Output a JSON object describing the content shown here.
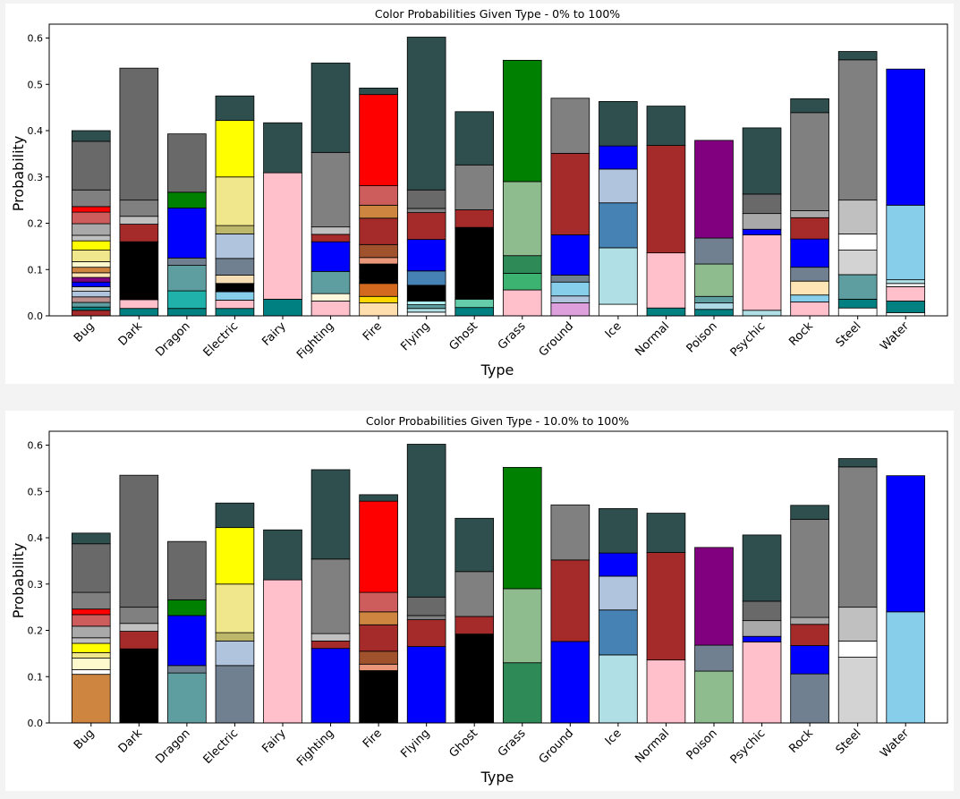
{
  "chart_data": [
    {
      "type": "bar",
      "stacked": true,
      "title": "Color Probabilities Given Type - 0% to 100%",
      "xlabel": "Type",
      "ylabel": "Probability",
      "ylim": [
        0,
        0.63
      ],
      "yticks": [
        0.0,
        0.1,
        0.2,
        0.3,
        0.4,
        0.5,
        0.6
      ],
      "categories": [
        "Bug",
        "Dark",
        "Dragon",
        "Electric",
        "Fairy",
        "Fighting",
        "Fire",
        "Flying",
        "Ghost",
        "Grass",
        "Ground",
        "Ice",
        "Normal",
        "Poison",
        "Psychic",
        "Rock",
        "Steel",
        "Water"
      ],
      "stacks": [
        [
          [
            0.012,
            "#a52a2a"
          ],
          [
            0.007,
            "#008080"
          ],
          [
            0.01,
            "#5f9ea0"
          ],
          [
            0.012,
            "#bc8f8f"
          ],
          [
            0.012,
            "#b0c4de"
          ],
          [
            0.01,
            "#d3d3d3"
          ],
          [
            0.01,
            "#0000ff"
          ],
          [
            0.01,
            "#800080"
          ],
          [
            0.01,
            "#ffe4b5"
          ],
          [
            0.012,
            "#cd853f"
          ],
          [
            0.012,
            "#fffacd"
          ],
          [
            0.025,
            "#f0e68c"
          ],
          [
            0.02,
            "#ffff00"
          ],
          [
            0.012,
            "#c0c0c0"
          ],
          [
            0.025,
            "#a9a9a9"
          ],
          [
            0.025,
            "#cd5c5c"
          ],
          [
            0.012,
            "#ff0000"
          ],
          [
            0.036,
            "#808080"
          ],
          [
            0.105,
            "#696969"
          ],
          [
            0.023,
            "#2f4f4f"
          ]
        ],
        [
          [
            0.016,
            "#008080"
          ],
          [
            0.019,
            "#ffc0cb"
          ],
          [
            0.125,
            "#000000"
          ],
          [
            0.038,
            "#a52a2a"
          ],
          [
            0.017,
            "#c0c0c0"
          ],
          [
            0.035,
            "#808080"
          ],
          [
            0.285,
            "#696969"
          ]
        ],
        [
          [
            0.016,
            "#008080"
          ],
          [
            0.038,
            "#20b2aa"
          ],
          [
            0.055,
            "#5f9ea0"
          ],
          [
            0.016,
            "#708090"
          ],
          [
            0.108,
            "#0000ff"
          ],
          [
            0.034,
            "#008000"
          ],
          [
            0.126,
            "#696969"
          ]
        ],
        [
          [
            0.016,
            "#008080"
          ],
          [
            0.018,
            "#ffc0cb"
          ],
          [
            0.018,
            "#87ceeb"
          ],
          [
            0.018,
            "#000000"
          ],
          [
            0.018,
            "#f5deb3"
          ],
          [
            0.036,
            "#708090"
          ],
          [
            0.053,
            "#b0c4de"
          ],
          [
            0.018,
            "#bdb76b"
          ],
          [
            0.105,
            "#f0e68c"
          ],
          [
            0.122,
            "#ffff00"
          ],
          [
            0.053,
            "#2f4f4f"
          ]
        ],
        [
          [
            0.036,
            "#008080"
          ],
          [
            0.273,
            "#ffc0cb"
          ],
          [
            0.108,
            "#2f4f4f"
          ]
        ],
        [
          [
            0.032,
            "#ffc0cb"
          ],
          [
            0.016,
            "#fff8dc"
          ],
          [
            0.048,
            "#5f9ea0"
          ],
          [
            0.064,
            "#0000ff"
          ],
          [
            0.016,
            "#a52a2a"
          ],
          [
            0.016,
            "#c0c0c0"
          ],
          [
            0.161,
            "#808080"
          ],
          [
            0.193,
            "#2f4f4f"
          ]
        ],
        [
          [
            0.028,
            "#ffdead"
          ],
          [
            0.014,
            "#ffd700"
          ],
          [
            0.028,
            "#d2691e"
          ],
          [
            0.014,
            "#000000"
          ],
          [
            0.028,
            "#000000"
          ],
          [
            0.014,
            "#e9967a"
          ],
          [
            0.028,
            "#a0522d"
          ],
          [
            0.057,
            "#a52a2a"
          ],
          [
            0.028,
            "#cd853f"
          ],
          [
            0.042,
            "#cd5c5c"
          ],
          [
            0.197,
            "#ff0000"
          ],
          [
            0.014,
            "#2f4f4f"
          ]
        ],
        [
          [
            0.008,
            "#ffffff"
          ],
          [
            0.008,
            "#b0e0e6"
          ],
          [
            0.008,
            "#5f9ea0"
          ],
          [
            0.008,
            "#afeeee"
          ],
          [
            0.034,
            "#000000"
          ],
          [
            0.031,
            "#4682b4"
          ],
          [
            0.068,
            "#0000ff"
          ],
          [
            0.058,
            "#a52a2a"
          ],
          [
            0.009,
            "#808080"
          ],
          [
            0.04,
            "#696969"
          ],
          [
            0.33,
            "#2f4f4f"
          ]
        ],
        [
          [
            0.018,
            "#008080"
          ],
          [
            0.018,
            "#66cdaa"
          ],
          [
            0.155,
            "#000000"
          ],
          [
            0.038,
            "#a52a2a"
          ],
          [
            0.097,
            "#808080"
          ],
          [
            0.115,
            "#2f4f4f"
          ]
        ],
        [
          [
            0.056,
            "#ffc0cb"
          ],
          [
            0.036,
            "#3cb371"
          ],
          [
            0.038,
            "#2e8b57"
          ],
          [
            0.16,
            "#8fbc8f"
          ],
          [
            0.262,
            "#008000"
          ]
        ],
        [
          [
            0.028,
            "#dda0dd"
          ],
          [
            0.015,
            "#b0c4de"
          ],
          [
            0.03,
            "#87ceeb"
          ],
          [
            0.015,
            "#708090"
          ],
          [
            0.087,
            "#0000ff"
          ],
          [
            0.176,
            "#a52a2a"
          ],
          [
            0.119,
            "#808080"
          ]
        ],
        [
          [
            0.025,
            "#ffffff"
          ],
          [
            0.122,
            "#b0e0e6"
          ],
          [
            0.097,
            "#4682b4"
          ],
          [
            0.073,
            "#b0c4de"
          ],
          [
            0.05,
            "#0000ff"
          ],
          [
            0.096,
            "#2f4f4f"
          ]
        ],
        [
          [
            0.017,
            "#008080"
          ],
          [
            0.119,
            "#ffc0cb"
          ],
          [
            0.232,
            "#a52a2a"
          ],
          [
            0.085,
            "#2f4f4f"
          ]
        ],
        [
          [
            0.014,
            "#008080"
          ],
          [
            0.014,
            "#add8e6"
          ],
          [
            0.014,
            "#5f9ea0"
          ],
          [
            0.07,
            "#8fbc8f"
          ],
          [
            0.056,
            "#708090"
          ],
          [
            0.211,
            "#800080"
          ]
        ],
        [
          [
            0.012,
            "#b0e0e6"
          ],
          [
            0.163,
            "#ffc0cb"
          ],
          [
            0.012,
            "#0000ff"
          ],
          [
            0.034,
            "#a9a9a9"
          ],
          [
            0.042,
            "#696969"
          ],
          [
            0.143,
            "#2f4f4f"
          ]
        ],
        [
          [
            0.03,
            "#ffc0cb"
          ],
          [
            0.015,
            "#87ceeb"
          ],
          [
            0.03,
            "#ffe4b5"
          ],
          [
            0.03,
            "#708090"
          ],
          [
            0.061,
            "#0000ff"
          ],
          [
            0.046,
            "#a52a2a"
          ],
          [
            0.015,
            "#a9a9a9"
          ],
          [
            0.212,
            "#808080"
          ],
          [
            0.03,
            "#2f4f4f"
          ]
        ],
        [
          [
            0.017,
            "#ffffff"
          ],
          [
            0.019,
            "#008080"
          ],
          [
            0.053,
            "#5f9ea0"
          ],
          [
            0.053,
            "#d3d3d3"
          ],
          [
            0.035,
            "#ffffff"
          ],
          [
            0.073,
            "#c0c0c0"
          ],
          [
            0.303,
            "#808080"
          ],
          [
            0.018,
            "#2f4f4f"
          ]
        ],
        [
          [
            0.007,
            "#ffffff"
          ],
          [
            0.025,
            "#008080"
          ],
          [
            0.031,
            "#ffc0cb"
          ],
          [
            0.007,
            "#f5f5f5"
          ],
          [
            0.008,
            "#b0e0e6"
          ],
          [
            0.161,
            "#87ceeb"
          ],
          [
            0.294,
            "#0000ff"
          ]
        ]
      ]
    },
    {
      "type": "bar",
      "stacked": true,
      "title": "Color Probabilities Given Type - 10.0% to 100%",
      "xlabel": "Type",
      "ylabel": "Probability",
      "ylim": [
        0,
        0.63
      ],
      "yticks": [
        0.0,
        0.1,
        0.2,
        0.3,
        0.4,
        0.5,
        0.6
      ],
      "categories": [
        "Bug",
        "Dark",
        "Dragon",
        "Electric",
        "Fairy",
        "Fighting",
        "Fire",
        "Flying",
        "Ghost",
        "Grass",
        "Ground",
        "Ice",
        "Normal",
        "Poison",
        "Psychic",
        "Rock",
        "Steel",
        "Water"
      ],
      "stacks": [
        [
          [
            0.105,
            "#cd853f"
          ],
          [
            0.01,
            "#ffffff"
          ],
          [
            0.025,
            "#fffacd"
          ],
          [
            0.012,
            "#f0e68c"
          ],
          [
            0.02,
            "#ffff00"
          ],
          [
            0.012,
            "#c0c0c0"
          ],
          [
            0.025,
            "#a9a9a9"
          ],
          [
            0.025,
            "#cd5c5c"
          ],
          [
            0.012,
            "#ff0000"
          ],
          [
            0.036,
            "#808080"
          ],
          [
            0.105,
            "#696969"
          ],
          [
            0.023,
            "#2f4f4f"
          ]
        ],
        [
          [
            0.16,
            "#000000"
          ],
          [
            0.038,
            "#a52a2a"
          ],
          [
            0.017,
            "#c0c0c0"
          ],
          [
            0.035,
            "#808080"
          ],
          [
            0.285,
            "#696969"
          ]
        ],
        [
          [
            0.108,
            "#5f9ea0"
          ],
          [
            0.016,
            "#708090"
          ],
          [
            0.108,
            "#0000ff"
          ],
          [
            0.034,
            "#008000"
          ],
          [
            0.126,
            "#696969"
          ]
        ],
        [
          [
            0.124,
            "#708090"
          ],
          [
            0.053,
            "#b0c4de"
          ],
          [
            0.018,
            "#bdb76b"
          ],
          [
            0.105,
            "#f0e68c"
          ],
          [
            0.122,
            "#ffff00"
          ],
          [
            0.053,
            "#2f4f4f"
          ]
        ],
        [
          [
            0.309,
            "#ffc0cb"
          ],
          [
            0.108,
            "#2f4f4f"
          ]
        ],
        [
          [
            0.161,
            "#0000ff"
          ],
          [
            0.016,
            "#a52a2a"
          ],
          [
            0.016,
            "#c0c0c0"
          ],
          [
            0.161,
            "#808080"
          ],
          [
            0.193,
            "#2f4f4f"
          ]
        ],
        [
          [
            0.113,
            "#000000"
          ],
          [
            0.014,
            "#e9967a"
          ],
          [
            0.028,
            "#a0522d"
          ],
          [
            0.057,
            "#a52a2a"
          ],
          [
            0.028,
            "#cd853f"
          ],
          [
            0.042,
            "#cd5c5c"
          ],
          [
            0.197,
            "#ff0000"
          ],
          [
            0.014,
            "#2f4f4f"
          ]
        ],
        [
          [
            0.165,
            "#0000ff"
          ],
          [
            0.058,
            "#a52a2a"
          ],
          [
            0.009,
            "#808080"
          ],
          [
            0.04,
            "#696969"
          ],
          [
            0.33,
            "#2f4f4f"
          ]
        ],
        [
          [
            0.192,
            "#000000"
          ],
          [
            0.038,
            "#a52a2a"
          ],
          [
            0.097,
            "#808080"
          ],
          [
            0.115,
            "#2f4f4f"
          ]
        ],
        [
          [
            0.13,
            "#2e8b57"
          ],
          [
            0.16,
            "#8fbc8f"
          ],
          [
            0.262,
            "#008000"
          ]
        ],
        [
          [
            0.176,
            "#0000ff"
          ],
          [
            0.176,
            "#a52a2a"
          ],
          [
            0.119,
            "#808080"
          ]
        ],
        [
          [
            0.147,
            "#b0e0e6"
          ],
          [
            0.097,
            "#4682b4"
          ],
          [
            0.073,
            "#b0c4de"
          ],
          [
            0.05,
            "#0000ff"
          ],
          [
            0.096,
            "#2f4f4f"
          ]
        ],
        [
          [
            0.136,
            "#ffc0cb"
          ],
          [
            0.232,
            "#a52a2a"
          ],
          [
            0.085,
            "#2f4f4f"
          ]
        ],
        [
          [
            0.112,
            "#8fbc8f"
          ],
          [
            0.056,
            "#708090"
          ],
          [
            0.211,
            "#800080"
          ]
        ],
        [
          [
            0.175,
            "#ffc0cb"
          ],
          [
            0.012,
            "#0000ff"
          ],
          [
            0.034,
            "#a9a9a9"
          ],
          [
            0.042,
            "#696969"
          ],
          [
            0.143,
            "#2f4f4f"
          ]
        ],
        [
          [
            0.106,
            "#708090"
          ],
          [
            0.061,
            "#0000ff"
          ],
          [
            0.046,
            "#a52a2a"
          ],
          [
            0.015,
            "#a9a9a9"
          ],
          [
            0.212,
            "#808080"
          ],
          [
            0.03,
            "#2f4f4f"
          ]
        ],
        [
          [
            0.142,
            "#d3d3d3"
          ],
          [
            0.035,
            "#ffffff"
          ],
          [
            0.073,
            "#c0c0c0"
          ],
          [
            0.303,
            "#808080"
          ],
          [
            0.018,
            "#2f4f4f"
          ]
        ],
        [
          [
            0.24,
            "#87ceeb"
          ],
          [
            0.294,
            "#0000ff"
          ]
        ]
      ]
    }
  ]
}
